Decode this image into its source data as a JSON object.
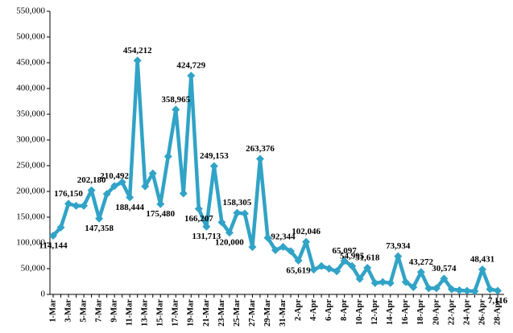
{
  "chart_data": {
    "type": "line",
    "categories": [
      "1-Mar",
      null,
      "3-Mar",
      null,
      "5-Mar",
      null,
      "7-Mar",
      null,
      "9-Mar",
      null,
      "11-Mar",
      null,
      "13-Mar",
      null,
      "15-Mar",
      null,
      "17-Mar",
      null,
      "19-Mar",
      null,
      "21-Mar",
      null,
      "23-Mar",
      null,
      "25-Mar",
      null,
      "27-Mar",
      null,
      "29-Mar",
      null,
      "31-Mar",
      null,
      "2-Apr",
      null,
      "4-Apr",
      null,
      "6-Apr",
      null,
      "8-Apr",
      null,
      "10-Apr",
      null,
      "12-Apr",
      null,
      "14-Apr",
      null,
      "16-Apr",
      null,
      "18-Apr",
      null,
      "20-Apr",
      null,
      "22-Apr",
      null,
      "24-Apr",
      null,
      "26-Apr",
      null,
      "28-Apr"
    ],
    "series": [
      {
        "color": "#31a3c6",
        "values": [
          114144,
          130000,
          176150,
          172000,
          172000,
          202180,
          147358,
          195000,
          210492,
          218000,
          188444,
          454212,
          210000,
          235000,
          175480,
          268000,
          358965,
          196000,
          424729,
          166207,
          131713,
          249153,
          140000,
          120000,
          158305,
          157000,
          92000,
          263376,
          110000,
          86000,
          92344,
          84000,
          65619,
          102046,
          48000,
          55000,
          50000,
          45000,
          65097,
          54995,
          30000,
          51618,
          22000,
          24000,
          22000,
          73934,
          24000,
          14000,
          43272,
          12000,
          12000,
          30574,
          10000,
          8000,
          7000,
          6000,
          48431,
          10000,
          7116
        ],
        "value_labels": [
          "114,144",
          null,
          "176,150",
          null,
          null,
          "202,180",
          "147,358",
          null,
          "210,492",
          null,
          "188,444",
          "454,212",
          null,
          null,
          "175,480",
          null,
          "358,965",
          null,
          "424,729",
          "166,207",
          "131,713",
          "249,153",
          null,
          "120,000",
          "158,305",
          null,
          null,
          "263,376",
          null,
          null,
          "92,344",
          null,
          "65,619",
          "102,046",
          null,
          null,
          null,
          null,
          "65,097",
          "54,995",
          null,
          "51,618",
          null,
          null,
          null,
          "73,934",
          null,
          null,
          "43,272",
          null,
          null,
          "30,574",
          null,
          null,
          null,
          null,
          "48,431",
          null,
          "7,116"
        ]
      }
    ],
    "ylim": [
      0,
      550000
    ],
    "yticks": [
      0,
      {
        "value": 50000,
        "label": "50,000"
      },
      {
        "value": 100000,
        "label": "100,000"
      },
      {
        "value": 150000,
        "label": "150,000"
      },
      {
        "value": 200000,
        "label": "200,000"
      },
      {
        "value": 250000,
        "label": "250,000"
      },
      {
        "value": 300000,
        "label": "300,000"
      },
      {
        "value": 350000,
        "label": "350,000"
      },
      {
        "value": 400000,
        "label": "400,000"
      },
      {
        "value": 450000,
        "label": "450,000"
      },
      {
        "value": 500000,
        "label": "500,000"
      },
      {
        "value": 550000,
        "label": "550,000"
      }
    ]
  }
}
